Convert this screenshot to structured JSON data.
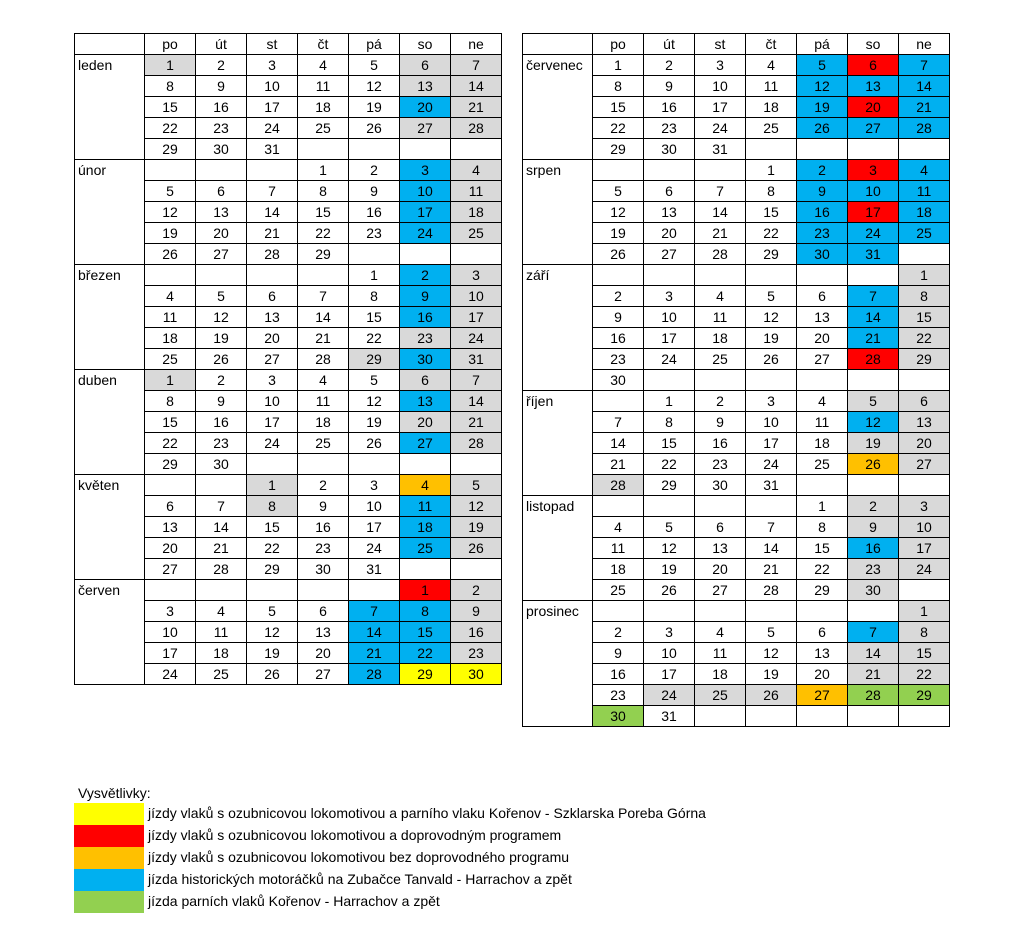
{
  "colors": {
    "W": "#ffffff",
    "G": "#d9d9d9",
    "B": "#00b0f0",
    "R": "#ff0000",
    "O": "#ffc000",
    "Y": "#ffff00",
    "L": "#92d050"
  },
  "day_headers": [
    "po",
    "út",
    "st",
    "čt",
    "pá",
    "so",
    "ne"
  ],
  "left": [
    {
      "name": "leden",
      "weeks": [
        [
          1,
          2,
          3,
          4,
          5,
          6,
          7
        ],
        [
          8,
          9,
          10,
          11,
          12,
          13,
          14
        ],
        [
          15,
          16,
          17,
          18,
          19,
          20,
          21
        ],
        [
          22,
          23,
          24,
          25,
          26,
          27,
          28
        ],
        [
          29,
          30,
          31,
          null,
          null,
          null,
          null
        ]
      ],
      "fills": [
        [
          "G",
          "W",
          "W",
          "W",
          "W",
          "G",
          "G"
        ],
        [
          "W",
          "W",
          "W",
          "W",
          "W",
          "G",
          "G"
        ],
        [
          "W",
          "W",
          "W",
          "W",
          "W",
          "B",
          "G"
        ],
        [
          "W",
          "W",
          "W",
          "W",
          "W",
          "G",
          "G"
        ],
        [
          "W",
          "W",
          "W",
          "W",
          "W",
          "W",
          "W"
        ]
      ]
    },
    {
      "name": "únor",
      "weeks": [
        [
          null,
          null,
          null,
          1,
          2,
          3,
          4
        ],
        [
          5,
          6,
          7,
          8,
          9,
          10,
          11
        ],
        [
          12,
          13,
          14,
          15,
          16,
          17,
          18
        ],
        [
          19,
          20,
          21,
          22,
          23,
          24,
          25
        ],
        [
          26,
          27,
          28,
          29,
          null,
          null,
          null
        ]
      ],
      "fills": [
        [
          "W",
          "W",
          "W",
          "W",
          "W",
          "B",
          "G"
        ],
        [
          "W",
          "W",
          "W",
          "W",
          "W",
          "B",
          "G"
        ],
        [
          "W",
          "W",
          "W",
          "W",
          "W",
          "B",
          "G"
        ],
        [
          "W",
          "W",
          "W",
          "W",
          "W",
          "B",
          "G"
        ],
        [
          "W",
          "W",
          "W",
          "W",
          "W",
          "W",
          "W"
        ]
      ]
    },
    {
      "name": "březen",
      "weeks": [
        [
          null,
          null,
          null,
          null,
          1,
          2,
          3
        ],
        [
          4,
          5,
          6,
          7,
          8,
          9,
          10
        ],
        [
          11,
          12,
          13,
          14,
          15,
          16,
          17
        ],
        [
          18,
          19,
          20,
          21,
          22,
          23,
          24
        ],
        [
          25,
          26,
          27,
          28,
          29,
          30,
          31
        ]
      ],
      "fills": [
        [
          "W",
          "W",
          "W",
          "W",
          "W",
          "B",
          "G"
        ],
        [
          "W",
          "W",
          "W",
          "W",
          "W",
          "B",
          "G"
        ],
        [
          "W",
          "W",
          "W",
          "W",
          "W",
          "B",
          "G"
        ],
        [
          "W",
          "W",
          "W",
          "W",
          "W",
          "G",
          "G"
        ],
        [
          "W",
          "W",
          "W",
          "W",
          "G",
          "B",
          "G"
        ]
      ]
    },
    {
      "name": "duben",
      "weeks": [
        [
          1,
          2,
          3,
          4,
          5,
          6,
          7
        ],
        [
          8,
          9,
          10,
          11,
          12,
          13,
          14
        ],
        [
          15,
          16,
          17,
          18,
          19,
          20,
          21
        ],
        [
          22,
          23,
          24,
          25,
          26,
          27,
          28
        ],
        [
          29,
          30,
          null,
          null,
          null,
          null,
          null
        ]
      ],
      "fills": [
        [
          "G",
          "W",
          "W",
          "W",
          "W",
          "G",
          "G"
        ],
        [
          "W",
          "W",
          "W",
          "W",
          "W",
          "B",
          "G"
        ],
        [
          "W",
          "W",
          "W",
          "W",
          "W",
          "G",
          "G"
        ],
        [
          "W",
          "W",
          "W",
          "W",
          "W",
          "B",
          "G"
        ],
        [
          "W",
          "W",
          "W",
          "W",
          "W",
          "W",
          "W"
        ]
      ]
    },
    {
      "name": "květen",
      "weeks": [
        [
          null,
          null,
          1,
          2,
          3,
          4,
          5
        ],
        [
          6,
          7,
          8,
          9,
          10,
          11,
          12
        ],
        [
          13,
          14,
          15,
          16,
          17,
          18,
          19
        ],
        [
          20,
          21,
          22,
          23,
          24,
          25,
          26
        ],
        [
          27,
          28,
          29,
          30,
          31,
          null,
          null
        ]
      ],
      "fills": [
        [
          "W",
          "W",
          "G",
          "W",
          "W",
          "O",
          "G"
        ],
        [
          "W",
          "W",
          "G",
          "W",
          "W",
          "B",
          "G"
        ],
        [
          "W",
          "W",
          "W",
          "W",
          "W",
          "B",
          "G"
        ],
        [
          "W",
          "W",
          "W",
          "W",
          "W",
          "B",
          "G"
        ],
        [
          "W",
          "W",
          "W",
          "W",
          "W",
          "W",
          "W"
        ]
      ]
    },
    {
      "name": "červen",
      "weeks": [
        [
          null,
          null,
          null,
          null,
          null,
          1,
          2
        ],
        [
          3,
          4,
          5,
          6,
          7,
          8,
          9
        ],
        [
          10,
          11,
          12,
          13,
          14,
          15,
          16
        ],
        [
          17,
          18,
          19,
          20,
          21,
          22,
          23
        ],
        [
          24,
          25,
          26,
          27,
          28,
          29,
          30
        ]
      ],
      "fills": [
        [
          "W",
          "W",
          "W",
          "W",
          "W",
          "R",
          "G"
        ],
        [
          "W",
          "W",
          "W",
          "W",
          "B",
          "B",
          "G"
        ],
        [
          "W",
          "W",
          "W",
          "W",
          "B",
          "B",
          "G"
        ],
        [
          "W",
          "W",
          "W",
          "W",
          "B",
          "B",
          "G"
        ],
        [
          "W",
          "W",
          "W",
          "W",
          "B",
          "Y",
          "Y"
        ]
      ]
    }
  ],
  "right": [
    {
      "name": "červenec",
      "weeks": [
        [
          1,
          2,
          3,
          4,
          5,
          6,
          7
        ],
        [
          8,
          9,
          10,
          11,
          12,
          13,
          14
        ],
        [
          15,
          16,
          17,
          18,
          19,
          20,
          21
        ],
        [
          22,
          23,
          24,
          25,
          26,
          27,
          28
        ],
        [
          29,
          30,
          31,
          null,
          null,
          null,
          null
        ]
      ],
      "fills": [
        [
          "W",
          "W",
          "W",
          "W",
          "B",
          "R",
          "B"
        ],
        [
          "W",
          "W",
          "W",
          "W",
          "B",
          "B",
          "B"
        ],
        [
          "W",
          "W",
          "W",
          "W",
          "B",
          "R",
          "B"
        ],
        [
          "W",
          "W",
          "W",
          "W",
          "B",
          "B",
          "B"
        ],
        [
          "W",
          "W",
          "W",
          "W",
          "W",
          "W",
          "W"
        ]
      ]
    },
    {
      "name": "srpen",
      "weeks": [
        [
          null,
          null,
          null,
          1,
          2,
          3,
          4
        ],
        [
          5,
          6,
          7,
          8,
          9,
          10,
          11
        ],
        [
          12,
          13,
          14,
          15,
          16,
          17,
          18
        ],
        [
          19,
          20,
          21,
          22,
          23,
          24,
          25
        ],
        [
          26,
          27,
          28,
          29,
          30,
          31,
          null
        ]
      ],
      "fills": [
        [
          "W",
          "W",
          "W",
          "W",
          "B",
          "R",
          "B"
        ],
        [
          "W",
          "W",
          "W",
          "W",
          "B",
          "B",
          "B"
        ],
        [
          "W",
          "W",
          "W",
          "W",
          "B",
          "R",
          "B"
        ],
        [
          "W",
          "W",
          "W",
          "W",
          "B",
          "B",
          "B"
        ],
        [
          "W",
          "W",
          "W",
          "W",
          "B",
          "B",
          "W"
        ]
      ]
    },
    {
      "name": "září",
      "weeks": [
        [
          null,
          null,
          null,
          null,
          null,
          null,
          1
        ],
        [
          2,
          3,
          4,
          5,
          6,
          7,
          8
        ],
        [
          9,
          10,
          11,
          12,
          13,
          14,
          15
        ],
        [
          16,
          17,
          18,
          19,
          20,
          21,
          22
        ],
        [
          23,
          24,
          25,
          26,
          27,
          28,
          29
        ],
        [
          30,
          null,
          null,
          null,
          null,
          null,
          null
        ]
      ],
      "fills": [
        [
          "W",
          "W",
          "W",
          "W",
          "W",
          "W",
          "G"
        ],
        [
          "W",
          "W",
          "W",
          "W",
          "W",
          "B",
          "G"
        ],
        [
          "W",
          "W",
          "W",
          "W",
          "W",
          "B",
          "G"
        ],
        [
          "W",
          "W",
          "W",
          "W",
          "W",
          "B",
          "G"
        ],
        [
          "W",
          "W",
          "W",
          "W",
          "W",
          "R",
          "G"
        ],
        [
          "W",
          "W",
          "W",
          "W",
          "W",
          "W",
          "W"
        ]
      ]
    },
    {
      "name": "říjen",
      "weeks": [
        [
          null,
          1,
          2,
          3,
          4,
          5,
          6
        ],
        [
          7,
          8,
          9,
          10,
          11,
          12,
          13
        ],
        [
          14,
          15,
          16,
          17,
          18,
          19,
          20
        ],
        [
          21,
          22,
          23,
          24,
          25,
          26,
          27
        ],
        [
          28,
          29,
          30,
          31,
          null,
          null,
          null
        ]
      ],
      "fills": [
        [
          "W",
          "W",
          "W",
          "W",
          "W",
          "G",
          "G"
        ],
        [
          "W",
          "W",
          "W",
          "W",
          "W",
          "B",
          "G"
        ],
        [
          "W",
          "W",
          "W",
          "W",
          "W",
          "G",
          "G"
        ],
        [
          "W",
          "W",
          "W",
          "W",
          "W",
          "O",
          "G"
        ],
        [
          "G",
          "W",
          "W",
          "W",
          "W",
          "W",
          "W"
        ]
      ]
    },
    {
      "name": "listopad",
      "weeks": [
        [
          null,
          null,
          null,
          null,
          1,
          2,
          3
        ],
        [
          4,
          5,
          6,
          7,
          8,
          9,
          10
        ],
        [
          11,
          12,
          13,
          14,
          15,
          16,
          17
        ],
        [
          18,
          19,
          20,
          21,
          22,
          23,
          24
        ],
        [
          25,
          26,
          27,
          28,
          29,
          30,
          null
        ]
      ],
      "fills": [
        [
          "W",
          "W",
          "W",
          "W",
          "W",
          "G",
          "G"
        ],
        [
          "W",
          "W",
          "W",
          "W",
          "W",
          "G",
          "G"
        ],
        [
          "W",
          "W",
          "W",
          "W",
          "W",
          "B",
          "G"
        ],
        [
          "W",
          "W",
          "W",
          "W",
          "W",
          "G",
          "G"
        ],
        [
          "W",
          "W",
          "W",
          "W",
          "W",
          "G",
          "W"
        ]
      ]
    },
    {
      "name": "prosinec",
      "weeks": [
        [
          null,
          null,
          null,
          null,
          null,
          null,
          1
        ],
        [
          2,
          3,
          4,
          5,
          6,
          7,
          8
        ],
        [
          9,
          10,
          11,
          12,
          13,
          14,
          15
        ],
        [
          16,
          17,
          18,
          19,
          20,
          21,
          22
        ],
        [
          23,
          24,
          25,
          26,
          27,
          28,
          29
        ],
        [
          30,
          31,
          null,
          null,
          null,
          null,
          null
        ]
      ],
      "fills": [
        [
          "W",
          "W",
          "W",
          "W",
          "W",
          "W",
          "G"
        ],
        [
          "W",
          "W",
          "W",
          "W",
          "W",
          "B",
          "G"
        ],
        [
          "W",
          "W",
          "W",
          "W",
          "W",
          "G",
          "G"
        ],
        [
          "W",
          "W",
          "W",
          "W",
          "W",
          "G",
          "G"
        ],
        [
          "W",
          "G",
          "G",
          "G",
          "O",
          "L",
          "L"
        ],
        [
          "L",
          "W",
          "W",
          "W",
          "W",
          "W",
          "W"
        ]
      ]
    }
  ],
  "legend": {
    "title": "Vysvětlivky:",
    "items": [
      {
        "color": "#ffff00",
        "text": "jízdy vlaků s ozubnicovou lokomotivou a parního vlaku Kořenov - Szklarska Poreba Górna"
      },
      {
        "color": "#ff0000",
        "text": "jízdy vlaků s ozubnicovou lokomotivou a doprovodným programem"
      },
      {
        "color": "#ffc000",
        "text": "jízdy vlaků s ozubnicovou lokomotivou bez doprovodného programu"
      },
      {
        "color": "#00b0f0",
        "text": "jízda historických motoráčků na Zubačce Tanvald - Harrachov a zpět"
      },
      {
        "color": "#92d050",
        "text": "jízda parních vlaků Kořenov - Harrachov a zpět"
      }
    ]
  }
}
